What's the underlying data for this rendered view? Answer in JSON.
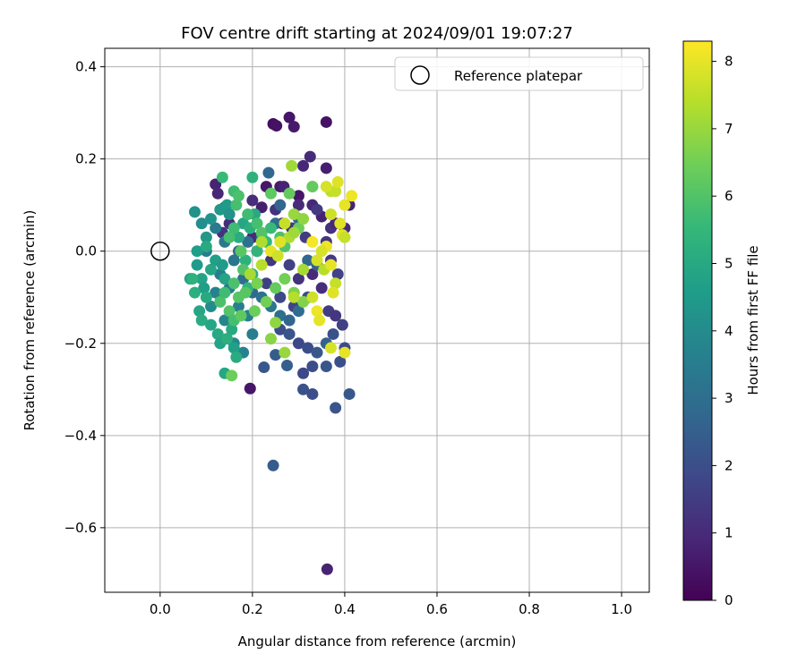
{
  "chart_data": {
    "type": "scatter",
    "title": "FOV centre drift starting at 2024/09/01 19:07:27",
    "xlabel": "Angular distance from reference (arcmin)",
    "ylabel": "Rotation from reference (arcmin)",
    "xlim": [
      -0.12,
      1.06
    ],
    "ylim": [
      -0.74,
      0.44
    ],
    "x_ticks": [
      0.0,
      0.2,
      0.4,
      0.6,
      0.8,
      1.0
    ],
    "x_tick_labels": [
      "0.0",
      "0.2",
      "0.4",
      "0.6",
      "0.8",
      "1.0"
    ],
    "y_ticks": [
      0.4,
      0.2,
      0.0,
      -0.2,
      -0.4,
      -0.6
    ],
    "y_tick_labels": [
      "0.4",
      "0.2",
      "0.0",
      "−0.2",
      "−0.4",
      "−0.6"
    ],
    "grid": true,
    "legend": {
      "placement": "top-right",
      "entries": [
        {
          "label": "Reference platepar",
          "marker": "open-circle",
          "color": "#000000"
        }
      ]
    },
    "reference_point": {
      "x": 0.0,
      "y": 0.0
    },
    "colorbar": {
      "label": "Hours from first FF file",
      "colormap": "viridis",
      "range": [
        0,
        8.3
      ],
      "ticks": [
        0,
        1,
        2,
        3,
        4,
        5,
        6,
        7,
        8
      ],
      "tick_labels": [
        "0",
        "1",
        "2",
        "3",
        "4",
        "5",
        "6",
        "7",
        "8"
      ]
    },
    "colormap_stops": [
      "#440154",
      "#482878",
      "#3e4989",
      "#31688e",
      "#26828e",
      "#1f9e89",
      "#35b779",
      "#6ece58",
      "#b5de2b",
      "#fde725"
    ],
    "series": [
      {
        "points": [
          [
            0.245,
            0.276,
            0.3
          ],
          [
            0.252,
            0.272,
            0.4
          ],
          [
            0.28,
            0.29,
            0.5
          ],
          [
            0.29,
            0.27,
            0.6
          ],
          [
            0.36,
            0.28,
            0.4
          ],
          [
            0.362,
            -0.69,
            0.8
          ],
          [
            0.195,
            -0.298,
            0.5
          ],
          [
            0.325,
            0.205,
            1.0
          ],
          [
            0.31,
            0.185,
            0.9
          ],
          [
            0.36,
            0.18,
            0.7
          ],
          [
            0.23,
            0.14,
            0.5
          ],
          [
            0.26,
            0.14,
            0.6
          ],
          [
            0.268,
            0.14,
            0.8
          ],
          [
            0.3,
            0.12,
            0.5
          ],
          [
            0.33,
            0.1,
            0.9
          ],
          [
            0.2,
            0.11,
            1.1
          ],
          [
            0.22,
            0.095,
            0.7
          ],
          [
            0.25,
            0.09,
            1.2
          ],
          [
            0.265,
            0.06,
            0.6
          ],
          [
            0.285,
            0.05,
            1.3
          ],
          [
            0.3,
            0.1,
            1.0
          ],
          [
            0.35,
            0.075,
            0.8
          ],
          [
            0.34,
            0.09,
            1.4
          ],
          [
            0.37,
            0.05,
            1.2
          ],
          [
            0.38,
            0.06,
            0.9
          ],
          [
            0.12,
            0.145,
            0.8
          ],
          [
            0.125,
            0.125,
            0.9
          ],
          [
            0.14,
            0.095,
            1.0
          ],
          [
            0.15,
            0.06,
            1.1
          ],
          [
            0.135,
            0.04,
            1.2
          ],
          [
            0.2,
            0.03,
            1.0
          ],
          [
            0.21,
            0.0,
            1.5
          ],
          [
            0.24,
            -0.02,
            1.3
          ],
          [
            0.28,
            -0.03,
            1.6
          ],
          [
            0.3,
            -0.06,
            1.2
          ],
          [
            0.33,
            -0.05,
            1.0
          ],
          [
            0.37,
            -0.02,
            1.4
          ],
          [
            0.35,
            -0.08,
            1.1
          ],
          [
            0.385,
            -0.05,
            1.7
          ],
          [
            0.315,
            0.03,
            1.5
          ],
          [
            0.36,
            0.02,
            1.3
          ],
          [
            0.4,
            0.05,
            1.0
          ],
          [
            0.41,
            0.1,
            0.8
          ],
          [
            0.23,
            -0.07,
            1.6
          ],
          [
            0.26,
            -0.1,
            1.8
          ],
          [
            0.29,
            -0.12,
            1.7
          ],
          [
            0.32,
            -0.1,
            1.9
          ],
          [
            0.365,
            -0.13,
            1.5
          ],
          [
            0.38,
            -0.14,
            1.3
          ],
          [
            0.395,
            -0.16,
            1.6
          ],
          [
            0.26,
            -0.17,
            2.0
          ],
          [
            0.28,
            -0.18,
            2.2
          ],
          [
            0.3,
            -0.2,
            1.8
          ],
          [
            0.32,
            -0.21,
            2.0
          ],
          [
            0.34,
            -0.22,
            2.3
          ],
          [
            0.375,
            -0.18,
            2.1
          ],
          [
            0.4,
            -0.21,
            1.9
          ],
          [
            0.36,
            -0.25,
            2.2
          ],
          [
            0.33,
            -0.25,
            2.0
          ],
          [
            0.31,
            -0.265,
            1.8
          ],
          [
            0.25,
            -0.225,
            2.4
          ],
          [
            0.225,
            -0.252,
            2.3
          ],
          [
            0.275,
            -0.248,
            2.5
          ],
          [
            0.31,
            -0.3,
            2.1
          ],
          [
            0.33,
            -0.31,
            2.0
          ],
          [
            0.38,
            -0.34,
            2.2
          ],
          [
            0.41,
            -0.31,
            2.3
          ],
          [
            0.245,
            -0.465,
            2.4
          ],
          [
            0.36,
            -0.2,
            2.6
          ],
          [
            0.39,
            -0.24,
            2.0
          ],
          [
            0.235,
            0.17,
            2.8
          ],
          [
            0.26,
            0.1,
            2.7
          ],
          [
            0.3,
            0.07,
            2.9
          ],
          [
            0.25,
            0.06,
            3.0
          ],
          [
            0.22,
            0.03,
            2.8
          ],
          [
            0.19,
            0.02,
            3.1
          ],
          [
            0.17,
            0.0,
            2.9
          ],
          [
            0.16,
            -0.02,
            3.2
          ],
          [
            0.18,
            -0.06,
            3.0
          ],
          [
            0.2,
            -0.09,
            2.8
          ],
          [
            0.22,
            -0.1,
            3.1
          ],
          [
            0.24,
            -0.12,
            3.3
          ],
          [
            0.26,
            -0.14,
            3.0
          ],
          [
            0.28,
            -0.15,
            2.7
          ],
          [
            0.3,
            -0.13,
            2.9
          ],
          [
            0.34,
            -0.03,
            2.6
          ],
          [
            0.32,
            -0.02,
            2.8
          ],
          [
            0.12,
            0.05,
            3.4
          ],
          [
            0.14,
            0.02,
            3.3
          ],
          [
            0.1,
            0.0,
            3.5
          ],
          [
            0.13,
            -0.05,
            3.6
          ],
          [
            0.15,
            -0.08,
            3.4
          ],
          [
            0.12,
            -0.09,
            3.7
          ],
          [
            0.17,
            -0.12,
            3.5
          ],
          [
            0.19,
            -0.14,
            3.6
          ],
          [
            0.14,
            -0.15,
            3.8
          ],
          [
            0.16,
            -0.2,
            3.9
          ],
          [
            0.18,
            -0.22,
            3.7
          ],
          [
            0.2,
            -0.18,
            3.5
          ],
          [
            0.11,
            -0.12,
            4.0
          ],
          [
            0.075,
            0.085,
            4.2
          ],
          [
            0.09,
            0.06,
            4.1
          ],
          [
            0.11,
            0.07,
            4.3
          ],
          [
            0.13,
            0.09,
            4.4
          ],
          [
            0.145,
            0.1,
            4.5
          ],
          [
            0.15,
            0.08,
            4.2
          ],
          [
            0.1,
            0.03,
            4.4
          ],
          [
            0.08,
            0.0,
            4.6
          ],
          [
            0.065,
            -0.06,
            4.7
          ],
          [
            0.08,
            -0.03,
            4.5
          ],
          [
            0.09,
            -0.06,
            4.8
          ],
          [
            0.095,
            -0.08,
            4.6
          ],
          [
            0.11,
            -0.04,
            4.9
          ],
          [
            0.12,
            -0.02,
            4.7
          ],
          [
            0.135,
            -0.03,
            4.5
          ],
          [
            0.14,
            -0.06,
            4.8
          ],
          [
            0.1,
            -0.1,
            5.0
          ],
          [
            0.085,
            -0.13,
            4.9
          ],
          [
            0.09,
            -0.15,
            5.1
          ],
          [
            0.11,
            -0.16,
            4.9
          ],
          [
            0.125,
            -0.18,
            5.0
          ],
          [
            0.13,
            -0.2,
            4.8
          ],
          [
            0.145,
            -0.19,
            5.2
          ],
          [
            0.155,
            -0.17,
            5.0
          ],
          [
            0.16,
            -0.21,
            4.7
          ],
          [
            0.165,
            -0.23,
            5.1
          ],
          [
            0.14,
            -0.265,
            4.9
          ],
          [
            0.075,
            -0.09,
            5.2
          ],
          [
            0.07,
            -0.06,
            5.3
          ],
          [
            0.1,
            0.01,
            5.0
          ],
          [
            0.17,
            0.03,
            5.1
          ],
          [
            0.18,
            0.06,
            4.9
          ],
          [
            0.195,
            0.05,
            5.2
          ],
          [
            0.205,
            0.08,
            5.0
          ],
          [
            0.185,
            -0.02,
            5.3
          ],
          [
            0.2,
            -0.05,
            5.2
          ],
          [
            0.19,
            -0.08,
            5.4
          ],
          [
            0.21,
            0.0,
            5.4
          ],
          [
            0.23,
            0.02,
            5.5
          ],
          [
            0.2,
            0.16,
            5.3
          ],
          [
            0.135,
            0.16,
            5.6
          ],
          [
            0.16,
            0.13,
            5.7
          ],
          [
            0.165,
            0.1,
            5.8
          ],
          [
            0.17,
            0.12,
            5.9
          ],
          [
            0.19,
            0.08,
            5.7
          ],
          [
            0.21,
            0.06,
            5.8
          ],
          [
            0.22,
            0.04,
            6.0
          ],
          [
            0.24,
            0.05,
            5.6
          ],
          [
            0.26,
            0.03,
            5.9
          ],
          [
            0.27,
            0.01,
            6.0
          ],
          [
            0.16,
            0.05,
            5.7
          ],
          [
            0.15,
            0.03,
            5.8
          ],
          [
            0.175,
            0.0,
            6.1
          ],
          [
            0.18,
            -0.04,
            6.0
          ],
          [
            0.16,
            -0.07,
            5.9
          ],
          [
            0.17,
            -0.1,
            6.1
          ],
          [
            0.15,
            -0.13,
            6.0
          ],
          [
            0.16,
            -0.15,
            5.8
          ],
          [
            0.175,
            -0.14,
            6.2
          ],
          [
            0.185,
            -0.09,
            6.1
          ],
          [
            0.13,
            -0.11,
            5.9
          ],
          [
            0.14,
            -0.09,
            5.7
          ],
          [
            0.155,
            -0.27,
            6.4
          ],
          [
            0.24,
            0.125,
            6.2
          ],
          [
            0.28,
            0.125,
            6.3
          ],
          [
            0.33,
            0.14,
            6.2
          ],
          [
            0.3,
            0.05,
            6.4
          ],
          [
            0.27,
            -0.06,
            6.5
          ],
          [
            0.25,
            -0.08,
            6.3
          ],
          [
            0.21,
            -0.07,
            6.6
          ],
          [
            0.205,
            -0.13,
            6.4
          ],
          [
            0.24,
            -0.19,
            6.8
          ],
          [
            0.25,
            -0.155,
            6.9
          ],
          [
            0.27,
            -0.22,
            7.0
          ],
          [
            0.31,
            -0.11,
            6.7
          ],
          [
            0.29,
            -0.09,
            6.6
          ],
          [
            0.23,
            -0.11,
            6.5
          ],
          [
            0.285,
            0.185,
            7.1
          ],
          [
            0.33,
            0.14,
            6.3
          ],
          [
            0.37,
            0.13,
            7.5
          ],
          [
            0.38,
            0.13,
            7.6
          ],
          [
            0.36,
            0.14,
            7.8
          ],
          [
            0.385,
            0.15,
            7.9
          ],
          [
            0.4,
            0.1,
            8.0
          ],
          [
            0.415,
            0.12,
            8.1
          ],
          [
            0.37,
            0.08,
            7.7
          ],
          [
            0.39,
            0.06,
            7.9
          ],
          [
            0.395,
            0.035,
            8.0
          ],
          [
            0.36,
            0.01,
            8.1
          ],
          [
            0.34,
            -0.02,
            7.8
          ],
          [
            0.355,
            -0.04,
            7.4
          ],
          [
            0.37,
            -0.03,
            8.0
          ],
          [
            0.38,
            -0.07,
            7.6
          ],
          [
            0.375,
            -0.09,
            7.9
          ],
          [
            0.34,
            -0.13,
            8.1
          ],
          [
            0.345,
            -0.15,
            8.0
          ],
          [
            0.37,
            -0.21,
            7.8
          ],
          [
            0.4,
            -0.22,
            8.0
          ],
          [
            0.31,
            -0.04,
            7.2
          ],
          [
            0.29,
            -0.1,
            7.4
          ],
          [
            0.33,
            -0.1,
            7.7
          ],
          [
            0.28,
            0.03,
            7.3
          ],
          [
            0.27,
            0.06,
            7.6
          ],
          [
            0.29,
            0.08,
            7.0
          ],
          [
            0.31,
            0.07,
            6.9
          ],
          [
            0.26,
            0.02,
            7.9
          ],
          [
            0.24,
            0.0,
            8.0
          ],
          [
            0.22,
            -0.03,
            7.4
          ],
          [
            0.195,
            -0.05,
            7.2
          ],
          [
            0.22,
            0.02,
            7.3
          ],
          [
            0.33,
            0.02,
            8.2
          ],
          [
            0.35,
            0.0,
            7.8
          ],
          [
            0.4,
            0.03,
            7.6
          ],
          [
            0.255,
            -0.01,
            7.7
          ],
          [
            0.29,
            0.04,
            7.1
          ]
        ]
      }
    ]
  }
}
